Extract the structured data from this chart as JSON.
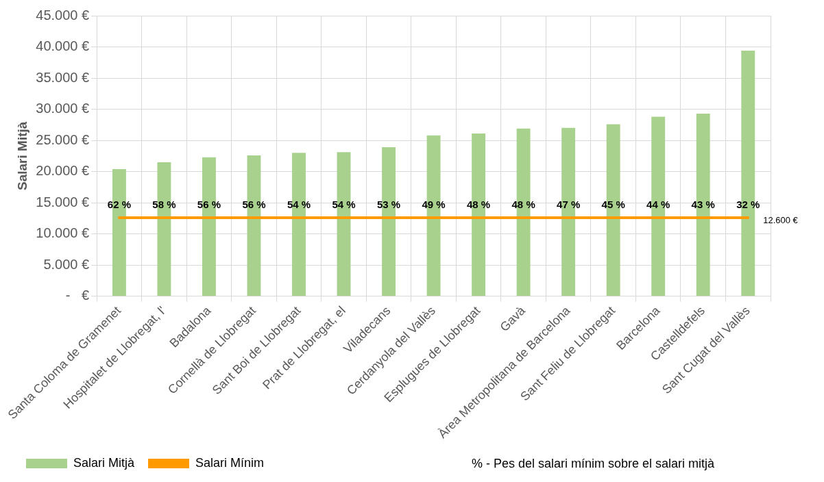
{
  "chart_data": {
    "type": "bar",
    "ylabel": "Salari Mitjà",
    "categories": [
      "Santa Coloma de Gramenet",
      "Hospitalet de Llobregat, l'",
      "Badalona",
      "Cornellà de Llobregat",
      "Sant Boi de Llobregat",
      "Prat de Llobregat, el",
      "Viladecans",
      "Cerdanyola del Vallès",
      "Esplugues de Llobregat",
      "Gavà",
      "Àrea Metropolitana de Barcelona",
      "Sant Feliu de Llobregat",
      "Barcelona",
      "Castelldefels",
      "Sant Cugat del Vallès"
    ],
    "series": [
      {
        "name": "Salari Mitjà",
        "color": "#a9d18e",
        "values": [
          20400,
          21500,
          22300,
          22600,
          23000,
          23100,
          23900,
          25800,
          26100,
          26900,
          27000,
          27600,
          28800,
          29300,
          39400
        ]
      },
      {
        "name": "Salari Mínim",
        "type": "line",
        "color": "#ff9900",
        "marker": "none",
        "values": [
          12600,
          12600,
          12600,
          12600,
          12600,
          12600,
          12600,
          12600,
          12600,
          12600,
          12600,
          12600,
          12600,
          12600,
          12600
        ],
        "value_labels": [
          null,
          null,
          null,
          null,
          null,
          null,
          null,
          null,
          null,
          null,
          null,
          null,
          null,
          null,
          "12.600 €"
        ]
      }
    ],
    "ylim": [
      0,
      45000
    ],
    "yticks": [
      {
        "value": 0,
        "label": "-   €"
      },
      {
        "value": 5000,
        "label": "5.000 €"
      },
      {
        "value": 10000,
        "label": "10.000 €"
      },
      {
        "value": 15000,
        "label": "15.000 €"
      },
      {
        "value": 20000,
        "label": "20.000 €"
      },
      {
        "value": 25000,
        "label": "25.000 €"
      },
      {
        "value": 30000,
        "label": "30.000 €"
      },
      {
        "value": 35000,
        "label": "35.000 €"
      },
      {
        "value": 40000,
        "label": "40.000 €"
      },
      {
        "value": 45000,
        "label": "45.000 €"
      }
    ],
    "grid": true,
    "legend": "bottom",
    "annotations": [
      "62 %",
      "58 %",
      "56 %",
      "56 %",
      "54 %",
      "54 %",
      "53 %",
      "49 %",
      "48 %",
      "48 %",
      "47 %",
      "45 %",
      "44 %",
      "43 %",
      "32 %",
      "% - Pes del salari mínim sobre el salari mitjà"
    ]
  }
}
